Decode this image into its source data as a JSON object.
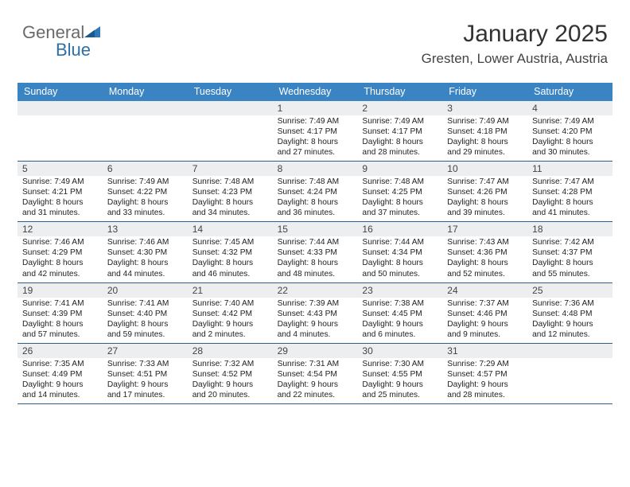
{
  "logo": {
    "text1": "General",
    "text2": "Blue",
    "triangle_color": "#2f79b8"
  },
  "header": {
    "title": "January 2025",
    "subtitle": "Gresten, Lower Austria, Austria"
  },
  "colors": {
    "headerbar": "#3b84c4",
    "week_border": "#2c5d8c",
    "numrow_bg": "#eceeef"
  },
  "daynames": [
    "Sunday",
    "Monday",
    "Tuesday",
    "Wednesday",
    "Thursday",
    "Friday",
    "Saturday"
  ],
  "weeks": [
    [
      null,
      null,
      null,
      {
        "n": "1",
        "sr": "7:49 AM",
        "ss": "4:17 PM",
        "dh": "8",
        "dm": "27"
      },
      {
        "n": "2",
        "sr": "7:49 AM",
        "ss": "4:17 PM",
        "dh": "8",
        "dm": "28"
      },
      {
        "n": "3",
        "sr": "7:49 AM",
        "ss": "4:18 PM",
        "dh": "8",
        "dm": "29"
      },
      {
        "n": "4",
        "sr": "7:49 AM",
        "ss": "4:20 PM",
        "dh": "8",
        "dm": "30"
      }
    ],
    [
      {
        "n": "5",
        "sr": "7:49 AM",
        "ss": "4:21 PM",
        "dh": "8",
        "dm": "31"
      },
      {
        "n": "6",
        "sr": "7:49 AM",
        "ss": "4:22 PM",
        "dh": "8",
        "dm": "33"
      },
      {
        "n": "7",
        "sr": "7:48 AM",
        "ss": "4:23 PM",
        "dh": "8",
        "dm": "34"
      },
      {
        "n": "8",
        "sr": "7:48 AM",
        "ss": "4:24 PM",
        "dh": "8",
        "dm": "36"
      },
      {
        "n": "9",
        "sr": "7:48 AM",
        "ss": "4:25 PM",
        "dh": "8",
        "dm": "37"
      },
      {
        "n": "10",
        "sr": "7:47 AM",
        "ss": "4:26 PM",
        "dh": "8",
        "dm": "39"
      },
      {
        "n": "11",
        "sr": "7:47 AM",
        "ss": "4:28 PM",
        "dh": "8",
        "dm": "41"
      }
    ],
    [
      {
        "n": "12",
        "sr": "7:46 AM",
        "ss": "4:29 PM",
        "dh": "8",
        "dm": "42"
      },
      {
        "n": "13",
        "sr": "7:46 AM",
        "ss": "4:30 PM",
        "dh": "8",
        "dm": "44"
      },
      {
        "n": "14",
        "sr": "7:45 AM",
        "ss": "4:32 PM",
        "dh": "8",
        "dm": "46"
      },
      {
        "n": "15",
        "sr": "7:44 AM",
        "ss": "4:33 PM",
        "dh": "8",
        "dm": "48"
      },
      {
        "n": "16",
        "sr": "7:44 AM",
        "ss": "4:34 PM",
        "dh": "8",
        "dm": "50"
      },
      {
        "n": "17",
        "sr": "7:43 AM",
        "ss": "4:36 PM",
        "dh": "8",
        "dm": "52"
      },
      {
        "n": "18",
        "sr": "7:42 AM",
        "ss": "4:37 PM",
        "dh": "8",
        "dm": "55"
      }
    ],
    [
      {
        "n": "19",
        "sr": "7:41 AM",
        "ss": "4:39 PM",
        "dh": "8",
        "dm": "57"
      },
      {
        "n": "20",
        "sr": "7:41 AM",
        "ss": "4:40 PM",
        "dh": "8",
        "dm": "59"
      },
      {
        "n": "21",
        "sr": "7:40 AM",
        "ss": "4:42 PM",
        "dh": "9",
        "dm": "2"
      },
      {
        "n": "22",
        "sr": "7:39 AM",
        "ss": "4:43 PM",
        "dh": "9",
        "dm": "4"
      },
      {
        "n": "23",
        "sr": "7:38 AM",
        "ss": "4:45 PM",
        "dh": "9",
        "dm": "6"
      },
      {
        "n": "24",
        "sr": "7:37 AM",
        "ss": "4:46 PM",
        "dh": "9",
        "dm": "9"
      },
      {
        "n": "25",
        "sr": "7:36 AM",
        "ss": "4:48 PM",
        "dh": "9",
        "dm": "12"
      }
    ],
    [
      {
        "n": "26",
        "sr": "7:35 AM",
        "ss": "4:49 PM",
        "dh": "9",
        "dm": "14"
      },
      {
        "n": "27",
        "sr": "7:33 AM",
        "ss": "4:51 PM",
        "dh": "9",
        "dm": "17"
      },
      {
        "n": "28",
        "sr": "7:32 AM",
        "ss": "4:52 PM",
        "dh": "9",
        "dm": "20"
      },
      {
        "n": "29",
        "sr": "7:31 AM",
        "ss": "4:54 PM",
        "dh": "9",
        "dm": "22"
      },
      {
        "n": "30",
        "sr": "7:30 AM",
        "ss": "4:55 PM",
        "dh": "9",
        "dm": "25"
      },
      {
        "n": "31",
        "sr": "7:29 AM",
        "ss": "4:57 PM",
        "dh": "9",
        "dm": "28"
      },
      null
    ]
  ]
}
